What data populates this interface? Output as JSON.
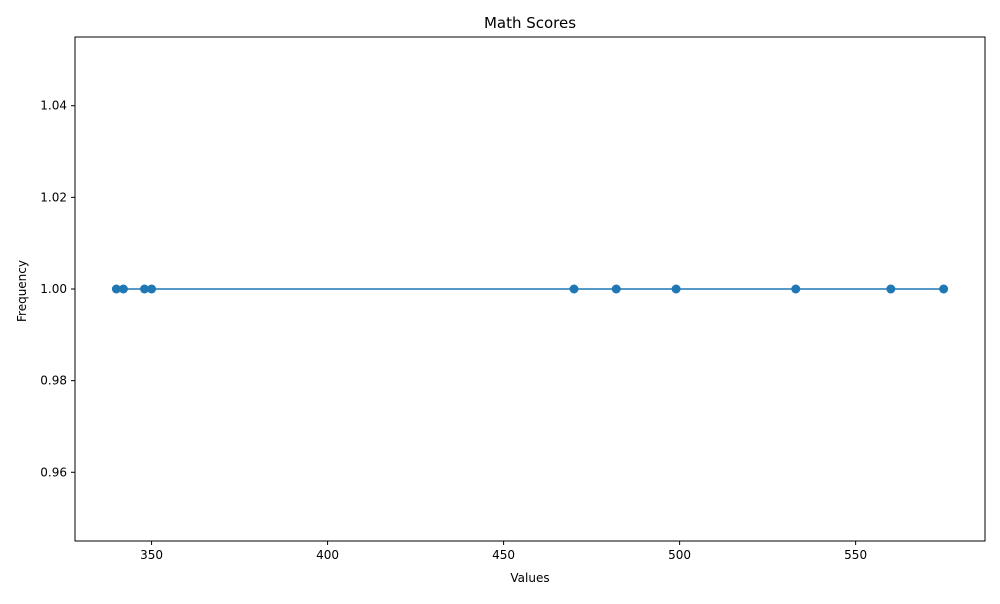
{
  "chart_data": {
    "type": "line",
    "title": "Math Scores",
    "xlabel": "Values",
    "ylabel": "Frequency",
    "x": [
      340,
      342,
      348,
      350,
      470,
      482,
      499,
      533,
      560,
      575
    ],
    "series": [
      {
        "name": "",
        "values": [
          1,
          1,
          1,
          1,
          1,
          1,
          1,
          1,
          1,
          1
        ]
      }
    ],
    "xlim": [
      328.25,
      586.75
    ],
    "ylim": [
      0.945,
      1.055
    ],
    "xticks": [
      350,
      400,
      450,
      500,
      550
    ],
    "xtick_labels": [
      "350",
      "400",
      "450",
      "500",
      "550"
    ],
    "yticks": [
      0.96,
      0.98,
      1.0,
      1.02,
      1.04
    ],
    "ytick_labels": [
      "0.96",
      "0.98",
      "1.00",
      "1.02",
      "1.04"
    ],
    "grid": false,
    "marker": "circle",
    "color": "#1f77b4"
  }
}
